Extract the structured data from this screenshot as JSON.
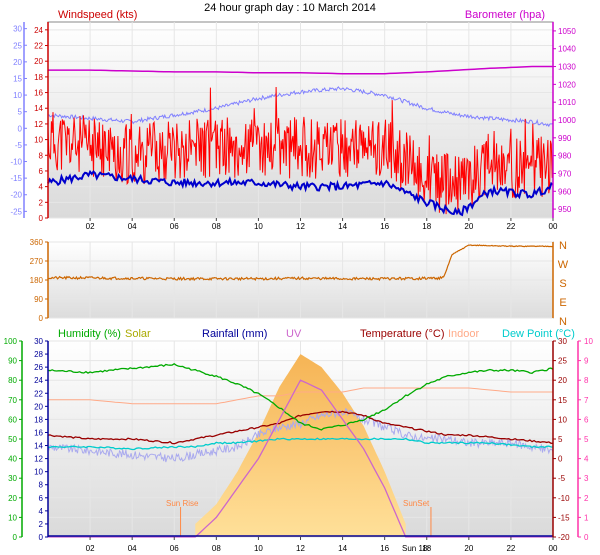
{
  "title": "24 hour graph day : 10 March 2014",
  "colors": {
    "wind": "#ff0000",
    "wind_axis": "#cc0000",
    "baro": "#cc00cc",
    "temp": "#0000cc",
    "blue_axis": "#8080ff",
    "dir": "#cc6600",
    "dir_axis": "#cc6600",
    "humidity": "#00aa00",
    "solar": "#aaaa00",
    "rain": "#000099",
    "uv": "#cc66cc",
    "temperature": "#990000",
    "indoor": "#ffaa88",
    "dewpoint": "#00cccc",
    "windchill_line": "#aaaaee",
    "solar_fill_top": "#fcc060",
    "solar_fill_bottom": "#ffdd88"
  },
  "x_tick_labels": [
    "02",
    "04",
    "06",
    "08",
    "10",
    "12",
    "14",
    "16",
    "18",
    "20",
    "22",
    "00"
  ],
  "sun_labels": {
    "rise": "Sun Rise",
    "set": "SunSet",
    "time_fragment": "Sun 18:"
  },
  "chart_data": [
    {
      "type": "line",
      "name": "wind-chart",
      "left_axis_label": "Windspeed (kts)",
      "right_axis_label": "Barometer (hpa)",
      "left_ticks": [
        0,
        2,
        4,
        6,
        8,
        10,
        12,
        14,
        16,
        18,
        20,
        22,
        24
      ],
      "right_ticks": [
        950,
        960,
        970,
        980,
        990,
        1000,
        1010,
        1020,
        1030,
        1040,
        1050
      ],
      "outer_left_ticks": [
        -25,
        -20,
        -15,
        -10,
        -5,
        0,
        5,
        10,
        15,
        20,
        25,
        30
      ],
      "ylim_left": [
        0,
        25
      ],
      "ylim_right": [
        945,
        1055
      ],
      "x": [
        0,
        2,
        4,
        6,
        8,
        10,
        12,
        14,
        16,
        18,
        19.5,
        21,
        23,
        24
      ],
      "series": [
        {
          "key": "wind_gust",
          "values": [
            10,
            9,
            8,
            9,
            9,
            9,
            9,
            9,
            9,
            5,
            4,
            7,
            6,
            7
          ]
        },
        {
          "key": "wind_avg",
          "values": [
            4.5,
            5.5,
            5,
            4.5,
            4.5,
            4.5,
            4,
            4,
            4.5,
            2,
            0.5,
            3.5,
            3,
            4
          ]
        },
        {
          "key": "barometer",
          "values": [
            1028,
            1028,
            1027.5,
            1027,
            1027,
            1026.5,
            1026.5,
            1026,
            1026,
            1027,
            1028,
            1029,
            1030,
            1030
          ]
        },
        {
          "key": "temperature_outer",
          "values": [
            4,
            3,
            2,
            4,
            6,
            9,
            11,
            12,
            10,
            6,
            4,
            3,
            2,
            1
          ]
        }
      ]
    },
    {
      "type": "line",
      "name": "direction-chart",
      "y_ticks": [
        0,
        90,
        180,
        270,
        360
      ],
      "compass": [
        "N",
        "W",
        "S",
        "E",
        "N"
      ],
      "ylim": [
        0,
        360
      ],
      "x": [
        0,
        2,
        4,
        6,
        8,
        10,
        12,
        14,
        16,
        18,
        18.8,
        19.2,
        20,
        22,
        24
      ],
      "values": [
        190,
        190,
        188,
        186,
        186,
        186,
        188,
        186,
        186,
        188,
        190,
        300,
        345,
        340,
        340
      ]
    },
    {
      "type": "line",
      "name": "weather-chart",
      "labels": {
        "humidity": "Humidity (%)",
        "solar": "Solar",
        "rainfall": "Rainfall (mm)",
        "uv": "UV",
        "temperature": "Temperature (°C)",
        "indoor": "Indoor",
        "dewpoint": "Dew Point (°C)"
      },
      "hum_ticks": [
        0,
        10,
        20,
        30,
        40,
        50,
        60,
        70,
        80,
        90,
        100
      ],
      "rain_ticks": [
        0,
        2,
        4,
        6,
        8,
        10,
        12,
        14,
        16,
        18,
        20,
        22,
        24,
        26,
        28,
        30
      ],
      "temp_ticks": [
        -20,
        -15,
        -10,
        -5,
        0,
        5,
        10,
        15,
        20,
        25,
        30
      ],
      "uv_ticks": [
        0,
        1,
        2,
        3,
        4,
        5,
        6,
        7,
        8,
        9,
        10
      ],
      "x": [
        0,
        2,
        4,
        6,
        7,
        8,
        9,
        10,
        11,
        12,
        13,
        14,
        15,
        16,
        17,
        18,
        19,
        20,
        21,
        22,
        23,
        24
      ],
      "series": [
        {
          "key": "humidity",
          "values": [
            85,
            84,
            86,
            88,
            85,
            82,
            78,
            73,
            66,
            58,
            55,
            57,
            60,
            65,
            72,
            78,
            82,
            84,
            85,
            85,
            84,
            86
          ]
        },
        {
          "key": "temperature",
          "values": [
            6,
            5,
            5,
            4,
            5,
            6,
            7,
            8,
            9,
            11,
            12,
            12,
            11,
            9,
            8,
            7,
            6,
            6,
            5.5,
            5,
            4.5,
            4
          ]
        },
        {
          "key": "indoor",
          "values": [
            15,
            15,
            14,
            14,
            14,
            14,
            15,
            16,
            16,
            17,
            17,
            17,
            18,
            18,
            18,
            18,
            18,
            18,
            17.5,
            17,
            17,
            17
          ]
        },
        {
          "key": "dewpoint",
          "values": [
            3,
            3,
            2.5,
            3,
            3,
            4,
            4,
            4.5,
            5,
            5,
            5,
            5,
            5,
            5,
            5,
            4,
            4,
            4,
            4,
            3.5,
            3,
            3
          ]
        },
        {
          "key": "windchill",
          "values": [
            3,
            2,
            1,
            0,
            1,
            2,
            3,
            6,
            8,
            9,
            11,
            12,
            10,
            8,
            6,
            5,
            5,
            4,
            4,
            4,
            3,
            2
          ]
        },
        {
          "key": "solar",
          "values": [
            0,
            0,
            0,
            0,
            2,
            5,
            10,
            16,
            23,
            28,
            26,
            22,
            17,
            10,
            2,
            0,
            0,
            0,
            0,
            0,
            0,
            0
          ]
        },
        {
          "key": "uv",
          "values": [
            0,
            0,
            0,
            0,
            0,
            1,
            2.5,
            4,
            6,
            8,
            7.5,
            6,
            4.5,
            2.5,
            0,
            0,
            0,
            0,
            0,
            0,
            0,
            0
          ]
        }
      ]
    }
  ]
}
